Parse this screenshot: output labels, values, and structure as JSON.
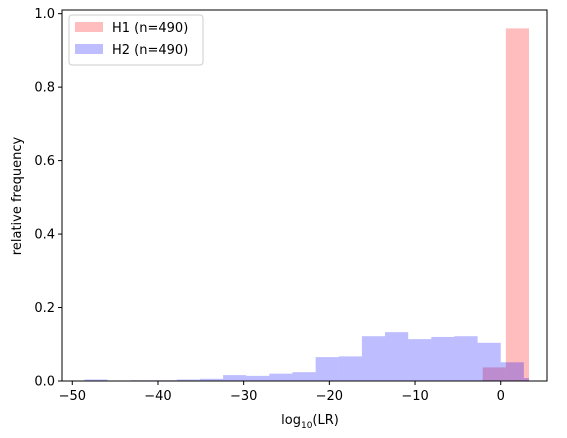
{
  "chart_data": {
    "type": "bar",
    "xlabel_main": "log",
    "xlabel_sub": "10",
    "xlabel_tail": "(LR)",
    "ylabel": "relative frequency",
    "xlim": [
      -51.2,
      5.4
    ],
    "ylim": [
      0,
      1.01
    ],
    "xticks": [
      -50,
      -40,
      -30,
      -20,
      -10,
      0
    ],
    "xtick_labels": [
      "−50",
      "−40",
      "−30",
      "−20",
      "−10",
      "0"
    ],
    "yticks": [
      0.0,
      0.2,
      0.4,
      0.6,
      0.8,
      1.0
    ],
    "ytick_labels": [
      "0.0",
      "0.2",
      "0.4",
      "0.6",
      "0.8",
      "1.0"
    ],
    "legend_placement": "top-left",
    "series": [
      {
        "name": "H1 (n=490)",
        "color": "#ff0000",
        "alpha": 0.26,
        "bins": [
          [
            0.6,
            3.3,
            0.96
          ],
          [
            -2.1,
            0.6,
            0.037
          ]
        ]
      },
      {
        "name": "H2 (n=490)",
        "color": "#0000ff",
        "alpha": 0.26,
        "bins": [
          [
            -48.6,
            -45.9,
            0.004
          ],
          [
            -45.9,
            -43.2,
            0.0
          ],
          [
            -43.2,
            -40.5,
            0.002
          ],
          [
            -40.5,
            -37.8,
            0.002
          ],
          [
            -37.8,
            -35.1,
            0.004
          ],
          [
            -35.1,
            -32.4,
            0.006
          ],
          [
            -32.4,
            -29.7,
            0.016
          ],
          [
            -29.7,
            -27.0,
            0.014
          ],
          [
            -27.0,
            -24.3,
            0.02
          ],
          [
            -24.3,
            -21.6,
            0.024
          ],
          [
            -21.6,
            -18.9,
            0.065
          ],
          [
            -18.9,
            -16.2,
            0.067
          ],
          [
            -16.2,
            -13.5,
            0.122
          ],
          [
            -13.5,
            -10.8,
            0.133
          ],
          [
            -10.8,
            -8.1,
            0.114
          ],
          [
            -8.1,
            -5.4,
            0.12
          ],
          [
            -5.4,
            -2.7,
            0.122
          ],
          [
            -2.7,
            0.0,
            0.104
          ],
          [
            0.0,
            2.7,
            0.051
          ],
          [
            2.7,
            3.3,
            0.008
          ]
        ]
      }
    ]
  }
}
